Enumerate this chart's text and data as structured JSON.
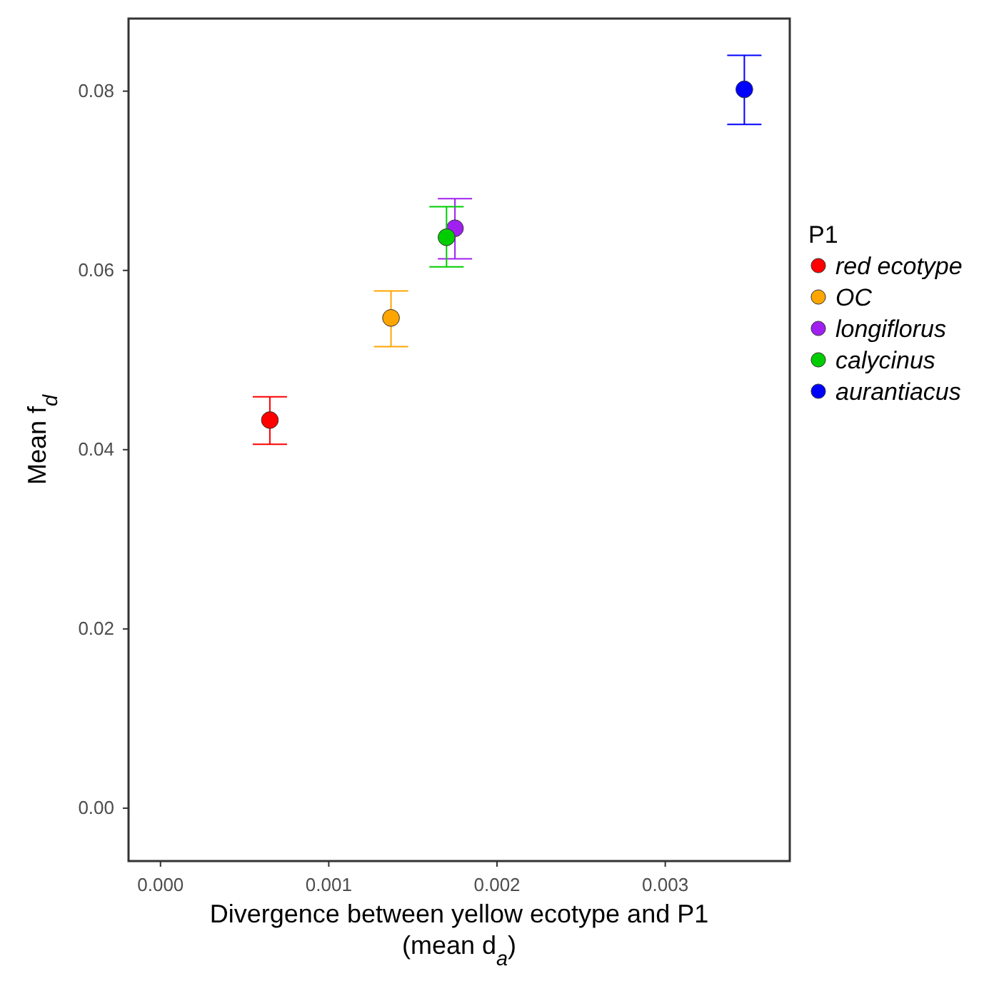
{
  "chart_data": {
    "type": "scatter",
    "xlabel": "Divergence between yellow ecotype and P1\n(mean d$_{a}$)",
    "ylabel": "Mean  f$_{d}$",
    "legend_title": "P1",
    "legend": "right",
    "grid": false,
    "marker": "circle",
    "xlim": [
      -0.00019,
      0.00374
    ],
    "xticks": [
      {
        "value": 0,
        "label": "0.000"
      },
      {
        "value": 0.001,
        "label": "0.001"
      },
      {
        "value": 0.002,
        "label": "0.002"
      },
      {
        "value": 0.003,
        "label": "0.003"
      }
    ],
    "ylim": [
      -0.0059,
      0.0881
    ],
    "yticks": [
      {
        "value": 0,
        "label": "0.00"
      },
      {
        "value": 0.02,
        "label": "0.02"
      },
      {
        "value": 0.04,
        "label": "0.04"
      },
      {
        "value": 0.06,
        "label": "0.06"
      },
      {
        "value": 0.08,
        "label": "0.08"
      }
    ],
    "series": [
      {
        "name": "red ecotype",
        "color": "#ff0000",
        "x": [
          0.00065
        ],
        "values": [
          0.0433
        ],
        "errors": [
          [
            0.0406,
            0.0459
          ]
        ]
      },
      {
        "name": "OC",
        "color": "#ffa500",
        "x": [
          0.00137
        ],
        "values": [
          0.0547
        ],
        "errors": [
          [
            0.0515,
            0.0577
          ]
        ]
      },
      {
        "name": "longiflorus",
        "color": "#a020f0",
        "x": [
          0.00175
        ],
        "values": [
          0.0647
        ],
        "errors": [
          [
            0.0613,
            0.068
          ]
        ]
      },
      {
        "name": "calycinus",
        "color": "#00cd00",
        "x": [
          0.0017
        ],
        "values": [
          0.0637
        ],
        "errors": [
          [
            0.0604,
            0.0671
          ]
        ]
      },
      {
        "name": "aurantiacus",
        "color": "#0000ff",
        "x": [
          0.00347
        ],
        "values": [
          0.0802
        ],
        "errors": [
          [
            0.0763,
            0.084
          ]
        ]
      }
    ]
  }
}
